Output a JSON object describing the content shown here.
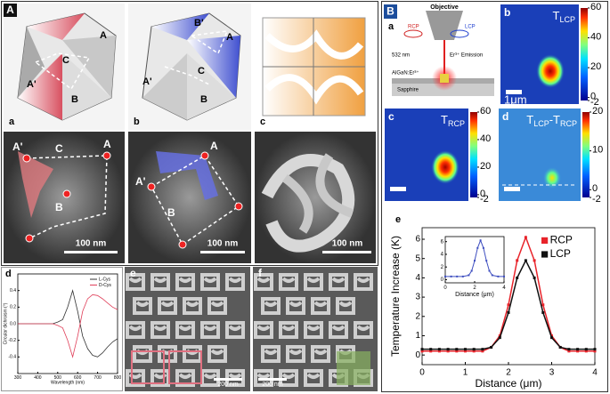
{
  "part_A": {
    "label": "A",
    "model_labels": [
      "a",
      "b",
      "c"
    ],
    "model_points": {
      "a": [
        "A",
        "A'",
        "B",
        "C"
      ],
      "b": [
        "A",
        "A'",
        "B",
        "B'",
        "C"
      ]
    },
    "sem_points": {
      "a": [
        "A'",
        "C",
        "A",
        "B"
      ],
      "b": [
        "A",
        "A'",
        "B"
      ]
    },
    "sem_scale_bars": [
      "100 nm",
      "100 nm",
      "100 nm"
    ],
    "lower_labels": [
      "d",
      "e",
      "f"
    ],
    "lower_scale_bars": [
      "200 nm",
      "200 nm"
    ]
  },
  "part_B": {
    "label": "B",
    "schematic": {
      "label": "a",
      "objective": "Objective",
      "rcp": "RCP",
      "lcp": "LCP",
      "laser": "532 nm",
      "emission": "Er³⁺ Emission",
      "film": "AlGaN:Er³⁺",
      "substrate": "Sapphire"
    },
    "maps": [
      {
        "label": "b",
        "title": [
          {
            "text": "T",
            "sub": false
          },
          {
            "text": "LCP",
            "sub": true
          }
        ],
        "clim": [
          -2,
          60
        ],
        "cticks": [
          60,
          40,
          20,
          0,
          -2
        ],
        "scale_bar": "1μm"
      },
      {
        "label": "c",
        "title": [
          {
            "text": "T",
            "sub": false
          },
          {
            "text": "RCP",
            "sub": true
          }
        ],
        "clim": [
          -2,
          60
        ],
        "cticks": [
          60,
          40,
          20,
          0,
          -2
        ]
      },
      {
        "label": "d",
        "title": [
          {
            "text": "T",
            "sub": false
          },
          {
            "text": "LCP",
            "sub": true
          },
          {
            "text": "-T",
            "sub": false
          },
          {
            "text": "RCP",
            "sub": true
          }
        ],
        "clim": [
          -2,
          20
        ],
        "cticks": [
          20,
          10,
          0,
          -2
        ]
      }
    ],
    "plot_label": "e"
  },
  "chart_data": [
    {
      "type": "line",
      "xlabel": "Wavelength (nm)",
      "ylabel": "Circular dichroism (°)",
      "x": [
        300,
        325,
        350,
        375,
        400,
        425,
        450,
        475,
        500,
        525,
        550,
        575,
        600,
        625,
        650,
        675,
        700,
        725,
        750,
        775,
        800
      ],
      "series": [
        {
          "name": "L-Cys",
          "color": "#333333",
          "values": [
            0,
            0,
            0,
            0,
            0,
            0,
            0,
            0,
            0.02,
            0.05,
            0.2,
            0.4,
            0.15,
            -0.15,
            -0.3,
            -0.38,
            -0.4,
            -0.35,
            -0.28,
            -0.22,
            -0.18
          ]
        },
        {
          "name": "D-Cys",
          "color": "#e0405a",
          "values": [
            0,
            0,
            0,
            0,
            0,
            0,
            0,
            0,
            -0.02,
            -0.05,
            -0.2,
            -0.4,
            -0.15,
            0.15,
            0.3,
            0.35,
            0.34,
            0.3,
            0.25,
            0.2,
            0.17
          ]
        }
      ],
      "xlim": [
        300,
        800
      ],
      "xticks": [
        300,
        400,
        500,
        600,
        700,
        800
      ],
      "ylim": [
        -0.6,
        0.6
      ],
      "yticks": [
        -0.4,
        -0.2,
        {
          "value": 0,
          "label": "0.0"
        },
        0.2,
        0.4
      ],
      "legend": "upper right"
    },
    {
      "type": "line",
      "xlabel": "Distance (μm)",
      "ylabel": "Temperature Increase (K)",
      "x": [
        0,
        0.2,
        0.4,
        0.6,
        0.8,
        1,
        1.2,
        1.4,
        1.6,
        1.8,
        2,
        2.2,
        2.4,
        2.6,
        2.8,
        3,
        3.2,
        3.4,
        3.6,
        3.8,
        4
      ],
      "series": [
        {
          "name": "RCP",
          "color": "#e8232a",
          "markers": true,
          "values": [
            0.2,
            0.2,
            0.2,
            0.2,
            0.2,
            0.2,
            0.2,
            0.2,
            0.4,
            1.0,
            2.6,
            4.9,
            6.1,
            4.9,
            2.6,
            1.0,
            0.4,
            0.2,
            0.2,
            0.2,
            0.2
          ]
        },
        {
          "name": "LCP",
          "color": "#111111",
          "markers": true,
          "values": [
            0.3,
            0.3,
            0.3,
            0.3,
            0.3,
            0.3,
            0.3,
            0.3,
            0.4,
            0.9,
            2.2,
            4.0,
            4.9,
            4.0,
            2.2,
            0.9,
            0.4,
            0.3,
            0.3,
            0.3,
            0.3
          ]
        }
      ],
      "xlim": [
        0,
        4
      ],
      "xticks": [
        0,
        1,
        2,
        3,
        4
      ],
      "ylim": [
        -0.5,
        6.6
      ],
      "yticks": [
        0,
        1,
        2,
        3,
        4,
        5,
        6
      ],
      "legend": "upper right"
    },
    {
      "type": "line",
      "xlabel": "Distance (μm)",
      "x": [
        0,
        0.4,
        0.8,
        1.2,
        1.6,
        1.8,
        2,
        2.2,
        2.4,
        2.6,
        2.8,
        3,
        3.2,
        3.6,
        4
      ],
      "series": [
        {
          "name": null,
          "color": "#3f4fc0",
          "markers": true,
          "values": [
            0.5,
            0.5,
            0.5,
            0.5,
            0.7,
            1.4,
            3.0,
            5.0,
            6.2,
            5.0,
            3.0,
            1.4,
            0.7,
            0.5,
            0.5
          ]
        }
      ],
      "xlim": [
        0,
        4
      ],
      "xticks": [
        0,
        2,
        4
      ],
      "ylim": [
        -0.5,
        6.8
      ],
      "yticks": [
        0,
        2,
        4,
        6
      ]
    }
  ]
}
